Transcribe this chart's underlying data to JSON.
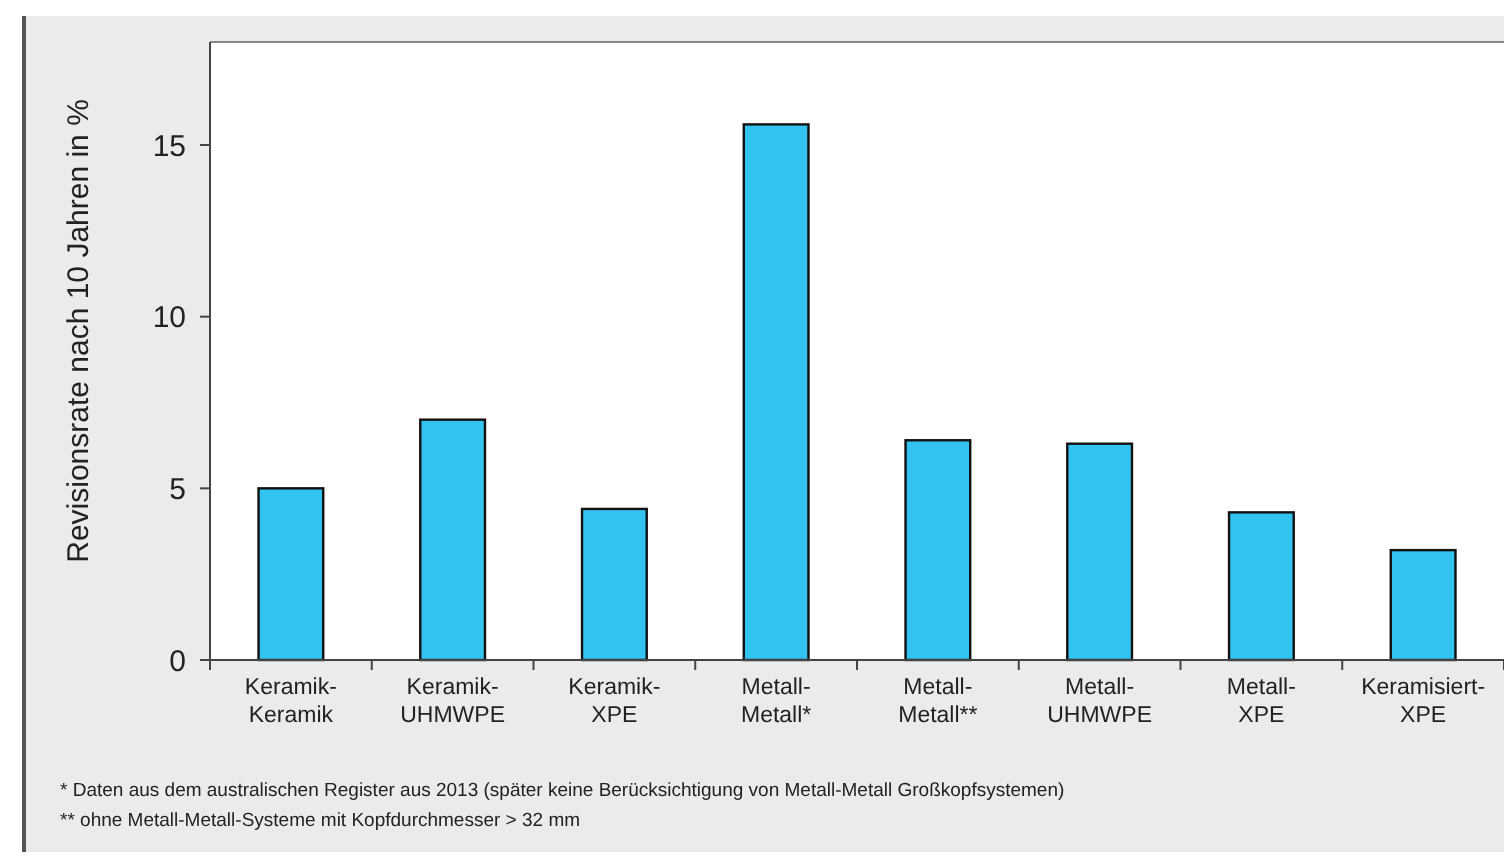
{
  "chart_data": {
    "type": "bar",
    "ylabel": "Revisionsrate nach 10 Jahren in %",
    "categories": [
      "Keramik-\nKeramik",
      "Keramik-\nUHMWPE",
      "Keramik-\nXPE",
      "Metall-\nMetall*",
      "Metall-\nMetall**",
      "Metall-\nUHMWPE",
      "Metall-\nXPE",
      "Keramisiert-\nXPE"
    ],
    "values": [
      5.0,
      7.0,
      4.4,
      15.6,
      6.4,
      6.3,
      4.3,
      3.2
    ],
    "color": "#33c3f0",
    "ylim": [
      0,
      18
    ],
    "yticks": [
      0,
      5,
      10,
      15
    ],
    "grid": false,
    "annotations": [
      "*  Daten aus dem australischen Register aus 2013 (später keine Berücksichtigung von Metall-Metall Großkopfsystemen)",
      "**  ohne Metall-Metall-Systeme mit Kopfdurchmesser > 32 mm"
    ]
  }
}
